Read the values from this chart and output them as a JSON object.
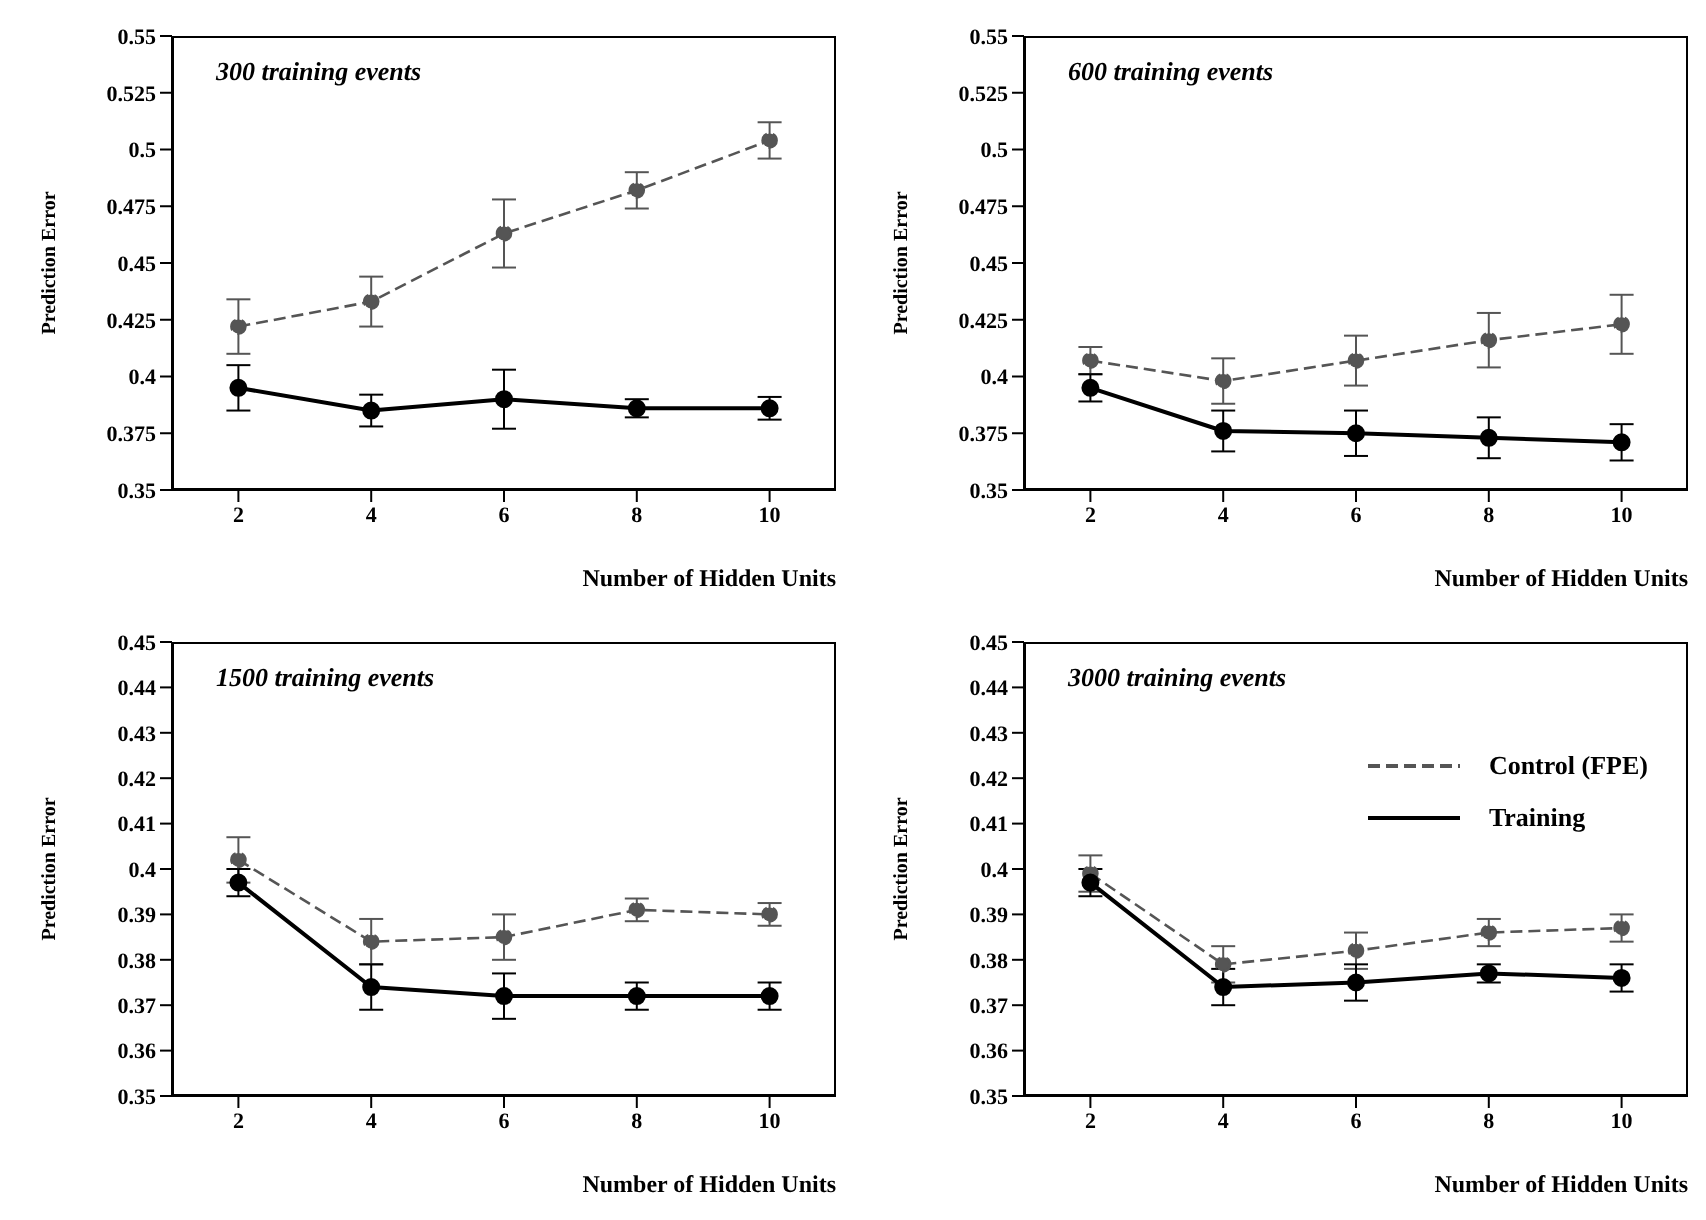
{
  "chart_data": [
    {
      "type": "line",
      "title": "300 training events",
      "xlabel": "Number of Hidden Units",
      "ylabel": "Prediction Error",
      "x": [
        2,
        4,
        6,
        8,
        10
      ],
      "xlim": [
        1,
        11
      ],
      "xticks": [
        2,
        4,
        6,
        8,
        10
      ],
      "ylim": [
        0.35,
        0.55
      ],
      "yticks": [
        0.35,
        0.375,
        0.4,
        0.425,
        0.45,
        0.475,
        0.5,
        0.525,
        0.55
      ],
      "marker": "circle",
      "legend": false,
      "series": [
        {
          "color": "#555555",
          "line_style": "dashed",
          "values": [
            0.422,
            0.433,
            0.463,
            0.482,
            0.504
          ],
          "errors": [
            0.012,
            0.011,
            0.015,
            0.008,
            0.008
          ]
        },
        {
          "color": "#000000",
          "line_style": "solid",
          "values": [
            0.395,
            0.385,
            0.39,
            0.386,
            0.386
          ],
          "errors": [
            0.01,
            0.007,
            0.013,
            0.004,
            0.005
          ]
        }
      ]
    },
    {
      "type": "line",
      "title": "600 training events",
      "xlabel": "Number of Hidden Units",
      "ylabel": "Prediction Error",
      "x": [
        2,
        4,
        6,
        8,
        10
      ],
      "xlim": [
        1,
        11
      ],
      "xticks": [
        2,
        4,
        6,
        8,
        10
      ],
      "ylim": [
        0.35,
        0.55
      ],
      "yticks": [
        0.35,
        0.375,
        0.4,
        0.425,
        0.45,
        0.475,
        0.5,
        0.525,
        0.55
      ],
      "marker": "circle",
      "legend": false,
      "series": [
        {
          "color": "#555555",
          "line_style": "dashed",
          "values": [
            0.407,
            0.398,
            0.407,
            0.416,
            0.423
          ],
          "errors": [
            0.006,
            0.01,
            0.011,
            0.012,
            0.013
          ]
        },
        {
          "color": "#000000",
          "line_style": "solid",
          "values": [
            0.395,
            0.376,
            0.375,
            0.373,
            0.371
          ],
          "errors": [
            0.006,
            0.009,
            0.01,
            0.009,
            0.008
          ]
        }
      ]
    },
    {
      "type": "line",
      "title": "1500 training events",
      "xlabel": "Number of Hidden Units",
      "ylabel": "Prediction Error",
      "x": [
        2,
        4,
        6,
        8,
        10
      ],
      "xlim": [
        1,
        11
      ],
      "xticks": [
        2,
        4,
        6,
        8,
        10
      ],
      "ylim": [
        0.35,
        0.45
      ],
      "yticks": [
        0.35,
        0.36,
        0.37,
        0.38,
        0.39,
        0.4,
        0.41,
        0.42,
        0.43,
        0.44,
        0.45
      ],
      "marker": "circle",
      "legend": false,
      "series": [
        {
          "color": "#555555",
          "line_style": "dashed",
          "values": [
            0.402,
            0.384,
            0.385,
            0.391,
            0.39
          ],
          "errors": [
            0.005,
            0.005,
            0.005,
            0.0025,
            0.0025
          ]
        },
        {
          "color": "#000000",
          "line_style": "solid",
          "values": [
            0.397,
            0.374,
            0.372,
            0.372,
            0.372
          ],
          "errors": [
            0.003,
            0.005,
            0.005,
            0.003,
            0.003
          ]
        }
      ]
    },
    {
      "type": "line",
      "title": "3000 training events",
      "xlabel": "Number of Hidden Units",
      "ylabel": "Prediction Error",
      "x": [
        2,
        4,
        6,
        8,
        10
      ],
      "xlim": [
        1,
        11
      ],
      "xticks": [
        2,
        4,
        6,
        8,
        10
      ],
      "ylim": [
        0.35,
        0.45
      ],
      "yticks": [
        0.35,
        0.36,
        0.37,
        0.38,
        0.39,
        0.4,
        0.41,
        0.42,
        0.43,
        0.44,
        0.45
      ],
      "marker": "circle",
      "legend": "right",
      "series": [
        {
          "name": "Control (FPE)",
          "color": "#555555",
          "line_style": "dashed",
          "values": [
            0.399,
            0.379,
            0.382,
            0.386,
            0.387
          ],
          "errors": [
            0.004,
            0.004,
            0.004,
            0.003,
            0.003
          ]
        },
        {
          "name": "Training",
          "color": "#000000",
          "line_style": "solid",
          "values": [
            0.397,
            0.374,
            0.375,
            0.377,
            0.376
          ],
          "errors": [
            0.003,
            0.004,
            0.004,
            0.002,
            0.003
          ]
        }
      ]
    }
  ]
}
